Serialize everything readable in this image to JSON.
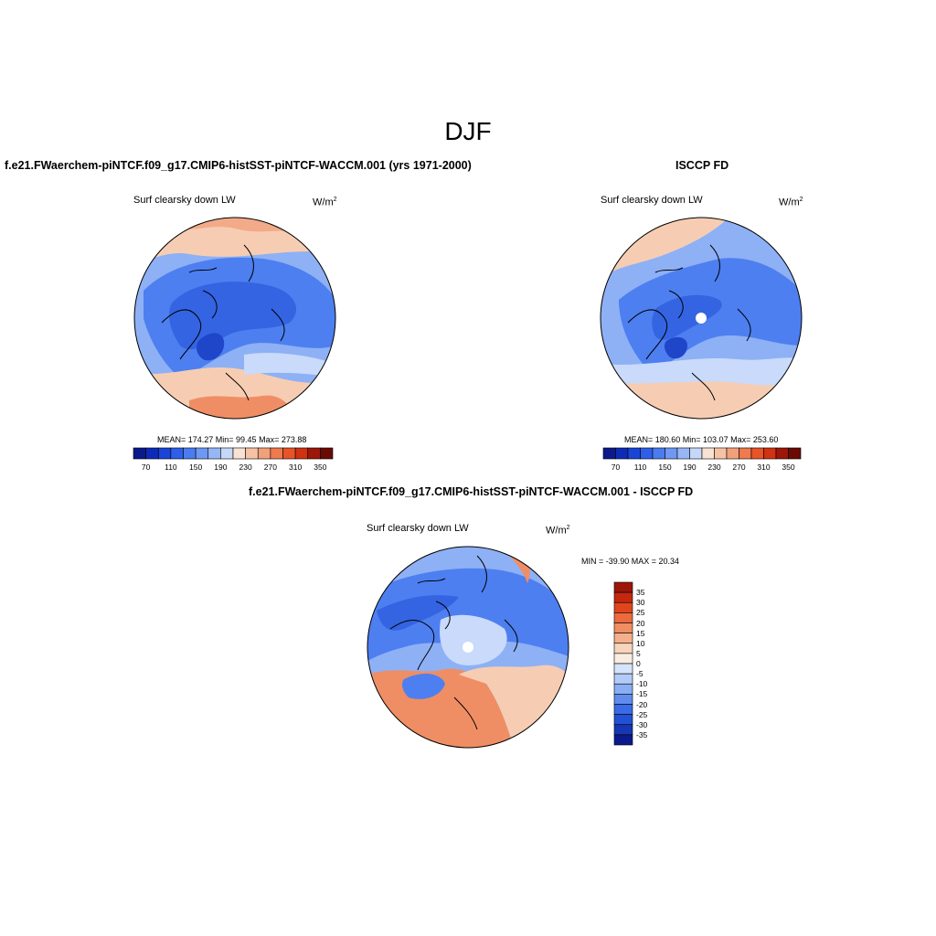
{
  "title": "DJF",
  "variable_label": "Surf clearsky down LW",
  "units_base": "W/m",
  "units_exp": "2",
  "panels": {
    "model": {
      "title": "f.e21.FWaerchem-piNTCF.f09_g17.CMIP6-histSST-piNTCF-WACCM.001 (yrs 1971-2000)",
      "stats": "MEAN= 174.27  Min=  99.45  Max= 273.88",
      "mean": 174.27,
      "min": 99.45,
      "max": 273.88
    },
    "obs": {
      "title": "ISCCP FD",
      "stats": "MEAN= 180.60  Min= 103.07  Max= 253.60",
      "mean": 180.6,
      "min": 103.07,
      "max": 253.6
    },
    "diff": {
      "title": "f.e21.FWaerchem-piNTCF.f09_g17.CMIP6-histSST-piNTCF-WACCM.001 - ISCCP FD",
      "stats": "MIN = -39.90 MAX =  20.34",
      "min": -39.9,
      "max": 20.34
    }
  },
  "colorbar_abs": {
    "tick_labels": [
      "70",
      "110",
      "150",
      "190",
      "230",
      "270",
      "310",
      "350"
    ],
    "colors": [
      "#0a1a8c",
      "#0e2bb8",
      "#1a44d6",
      "#2f5fe8",
      "#4a7cf0",
      "#6e98f3",
      "#97b6f6",
      "#c6d8f9",
      "#f8e2d2",
      "#f6c2a4",
      "#f2a07a",
      "#ee7a4e",
      "#e85428",
      "#d03212",
      "#9c160a",
      "#6b0a05"
    ]
  },
  "colorbar_diff": {
    "tick_labels": [
      "35",
      "30",
      "25",
      "20",
      "15",
      "10",
      "5",
      "0",
      "-5",
      "-10",
      "-15",
      "-20",
      "-25",
      "-30",
      "-35"
    ],
    "colors": [
      "#9c160a",
      "#c42810",
      "#e0461e",
      "#ec6a3e",
      "#f08e62",
      "#f4b08c",
      "#f7d4bc",
      "#fbece2",
      "#d6e4fb",
      "#b3cbf7",
      "#8aaef3",
      "#5f8cee",
      "#3a6be6",
      "#2250d6",
      "#1636b4",
      "#0a1a8c"
    ]
  },
  "map_colors": {
    "deep_blue": "#3464e2",
    "mid_blue": "#4d7ff0",
    "light_blue": "#8eb0f5",
    "pale_blue": "#c9dafa",
    "peach": "#f6cdb3",
    "orange": "#ef8e64",
    "dark_blue": "#1f46c8",
    "missing": "#ffffff"
  }
}
